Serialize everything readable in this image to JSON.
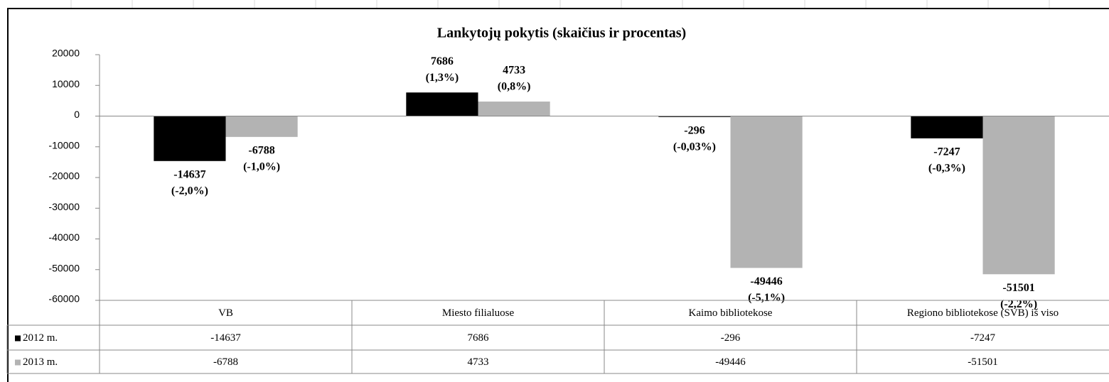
{
  "chart_data": {
    "type": "bar",
    "title": "Lankytojų pokytis (skaičius ir procentas)",
    "categories": [
      "VB",
      "Miesto filialuose",
      "Kaimo bibliotekose",
      "Regiono bibliotekose  (SVB) iš viso"
    ],
    "series": [
      {
        "name": "2012 m.",
        "color": "#000000",
        "values": [
          -14637,
          7686,
          -296,
          -7247
        ],
        "percent_labels": [
          "(-2,0%)",
          "(1,3%)",
          "(-0,03%)",
          "(-0,3%)"
        ]
      },
      {
        "name": "2013 m.",
        "color": "#b3b3b3",
        "values": [
          -6788,
          4733,
          -49446,
          -51501
        ],
        "percent_labels": [
          "(-1,0%)",
          "(0,8%)",
          "(-5,1%)",
          "(-2,2%)"
        ]
      }
    ],
    "ylim": [
      -60000,
      20000
    ],
    "yticks": [
      -60000,
      -50000,
      -40000,
      -30000,
      -20000,
      -10000,
      0,
      10000,
      20000
    ],
    "data_table": true
  }
}
